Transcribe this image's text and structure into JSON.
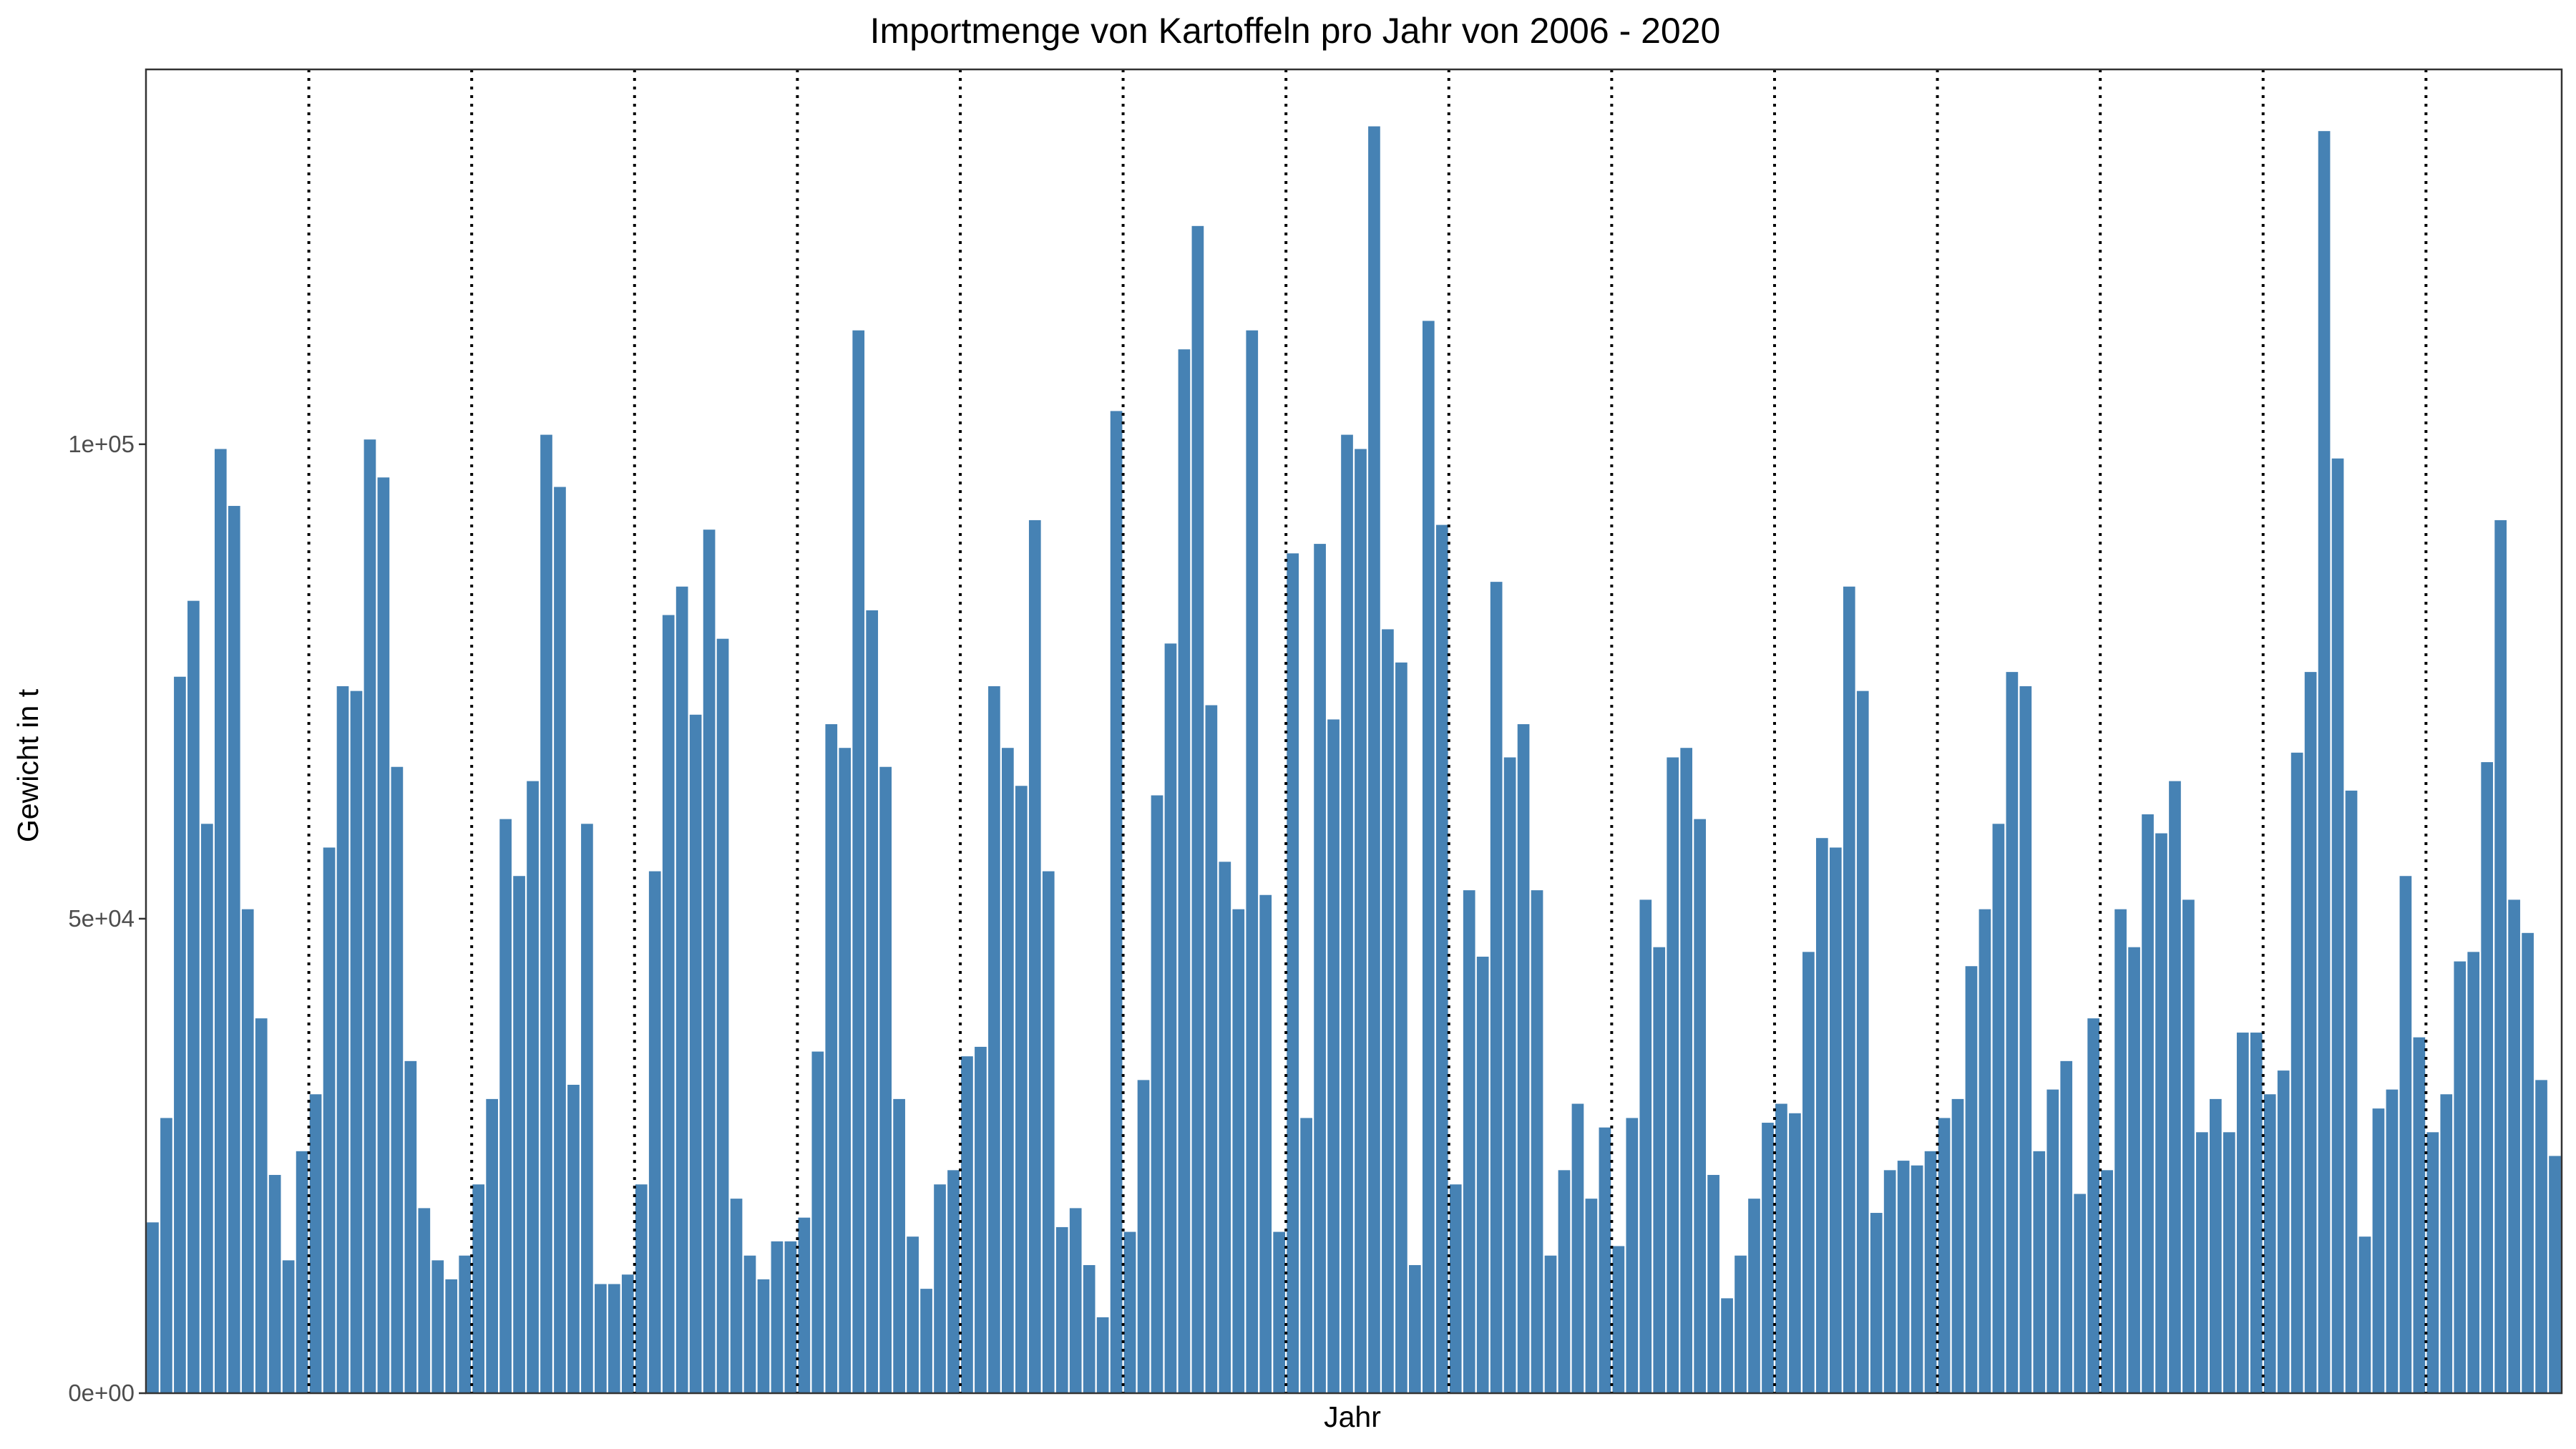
{
  "chart_data": {
    "type": "bar",
    "title": "Importmenge von Kartoffeln pro Jahr von 2006 - 2020",
    "xlabel": "Jahr",
    "ylabel": "Gewicht in t",
    "ylim": [
      0,
      139500
    ],
    "y_ticks": [
      0,
      50000,
      100000
    ],
    "y_tick_labels": [
      "0e+00",
      "5e+04",
      "1e+05"
    ],
    "x_tick_labels": [],
    "grid": false,
    "legend": "none",
    "bar_color": "#4682B4",
    "separator_style": "dotted",
    "separators_after_bar": [
      12,
      24,
      36,
      48,
      60,
      72,
      84,
      96,
      108,
      120,
      132,
      144,
      156,
      168
    ],
    "values": [
      18000,
      29000,
      75500,
      83500,
      60000,
      99500,
      93500,
      51000,
      39500,
      23000,
      14000,
      25500,
      31500,
      57500,
      74500,
      74000,
      100500,
      96500,
      66000,
      35000,
      19500,
      14000,
      12000,
      14500,
      22000,
      31000,
      60500,
      54500,
      64500,
      101000,
      95500,
      32500,
      60000,
      11500,
      11500,
      12500,
      22000,
      55000,
      82000,
      85000,
      71500,
      91000,
      79500,
      20500,
      14500,
      12000,
      16000,
      16000,
      18500,
      36000,
      70500,
      68000,
      112000,
      82500,
      66000,
      31000,
      16500,
      11000,
      22000,
      23500,
      35500,
      36500,
      74500,
      68000,
      64000,
      92000,
      55000,
      17500,
      19500,
      13500,
      8000,
      103500,
      17000,
      33000,
      63000,
      79000,
      110000,
      123000,
      72500,
      56000,
      51000,
      112000,
      52500,
      17000,
      88500,
      29000,
      89500,
      71000,
      101000,
      99500,
      133500,
      80500,
      77000,
      13500,
      113000,
      91500,
      22000,
      53000,
      46000,
      85500,
      67000,
      70500,
      53000,
      14500,
      23500,
      30500,
      20500,
      28000,
      15500,
      29000,
      52000,
      47000,
      67000,
      68000,
      60500,
      23000,
      10000,
      14500,
      20500,
      28500,
      30500,
      29500,
      46500,
      58500,
      57500,
      85000,
      74000,
      19000,
      23500,
      24500,
      24000,
      25500,
      29000,
      31000,
      45000,
      51000,
      60000,
      76000,
      74500,
      25500,
      32000,
      35000,
      21000,
      39500,
      23500,
      51000,
      47000,
      61000,
      59000,
      64500,
      52000,
      27500,
      31000,
      27500,
      38000,
      38000,
      31500,
      34000,
      67500,
      76000,
      133000,
      98500,
      63500,
      16500,
      30000,
      32000,
      54500,
      37500,
      27500,
      31500,
      45500,
      46500,
      66500,
      92000,
      52000,
      48500,
      33000,
      25000
    ]
  }
}
